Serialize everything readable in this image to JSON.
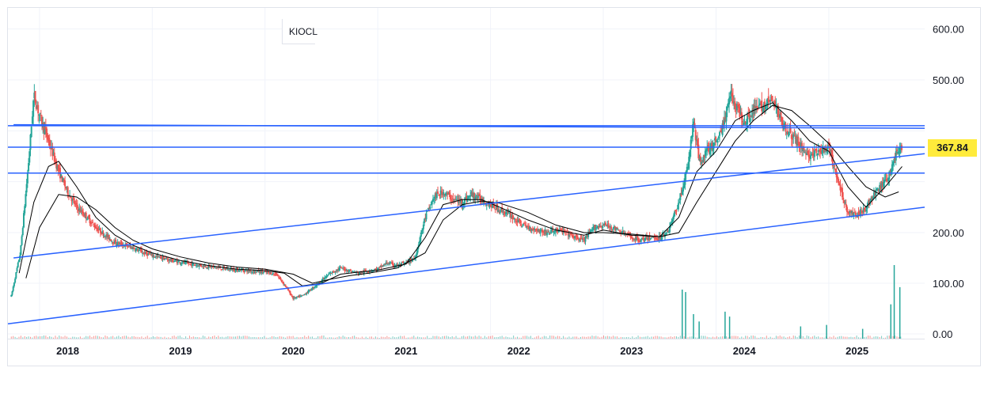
{
  "symbol": "KIOCL",
  "last_price": "367.84",
  "colors": {
    "up": "#26a69a",
    "down": "#ef5350",
    "trendline": "#2962ff",
    "moving_average": "#000000",
    "price_badge": "#ffeb3b",
    "grid": "#f0f3fa",
    "axis_text": "#131722"
  },
  "chart_data": {
    "type": "candlestick",
    "title": "",
    "xlabel": "",
    "ylabel": "",
    "x_ticks": [
      "2018",
      "2019",
      "2020",
      "2021",
      "2022",
      "2023",
      "2024",
      "2025"
    ],
    "y_ticks": [
      "0.00",
      "100.00",
      "200.00",
      "500.00",
      "600.00"
    ],
    "ylim": [
      -10,
      640
    ],
    "xlim": [
      2017.72,
      2025.85
    ],
    "grid": true,
    "approx_close_series": [
      [
        2017.75,
        75
      ],
      [
        2017.83,
        160
      ],
      [
        2017.9,
        330
      ],
      [
        2017.95,
        470
      ],
      [
        2018.0,
        430
      ],
      [
        2018.08,
        380
      ],
      [
        2018.17,
        320
      ],
      [
        2018.25,
        280
      ],
      [
        2018.33,
        250
      ],
      [
        2018.42,
        230
      ],
      [
        2018.5,
        210
      ],
      [
        2018.58,
        195
      ],
      [
        2018.67,
        180
      ],
      [
        2018.75,
        175
      ],
      [
        2018.83,
        170
      ],
      [
        2018.92,
        160
      ],
      [
        2019.0,
        155
      ],
      [
        2019.17,
        145
      ],
      [
        2019.33,
        138
      ],
      [
        2019.5,
        133
      ],
      [
        2019.67,
        128
      ],
      [
        2019.83,
        125
      ],
      [
        2020.0,
        122
      ],
      [
        2020.1,
        118
      ],
      [
        2020.18,
        95
      ],
      [
        2020.25,
        70
      ],
      [
        2020.33,
        75
      ],
      [
        2020.42,
        90
      ],
      [
        2020.5,
        105
      ],
      [
        2020.58,
        120
      ],
      [
        2020.67,
        130
      ],
      [
        2020.75,
        125
      ],
      [
        2020.83,
        120
      ],
      [
        2020.92,
        125
      ],
      [
        2021.0,
        128
      ],
      [
        2021.08,
        140
      ],
      [
        2021.17,
        135
      ],
      [
        2021.25,
        140
      ],
      [
        2021.33,
        150
      ],
      [
        2021.42,
        230
      ],
      [
        2021.5,
        270
      ],
      [
        2021.58,
        280
      ],
      [
        2021.67,
        265
      ],
      [
        2021.75,
        260
      ],
      [
        2021.83,
        275
      ],
      [
        2021.92,
        265
      ],
      [
        2022.0,
        255
      ],
      [
        2022.08,
        245
      ],
      [
        2022.17,
        235
      ],
      [
        2022.25,
        220
      ],
      [
        2022.33,
        210
      ],
      [
        2022.42,
        205
      ],
      [
        2022.5,
        200
      ],
      [
        2022.58,
        205
      ],
      [
        2022.67,
        200
      ],
      [
        2022.75,
        190
      ],
      [
        2022.83,
        185
      ],
      [
        2022.92,
        210
      ],
      [
        2023.0,
        215
      ],
      [
        2023.08,
        210
      ],
      [
        2023.17,
        200
      ],
      [
        2023.25,
        190
      ],
      [
        2023.33,
        185
      ],
      [
        2023.42,
        190
      ],
      [
        2023.5,
        190
      ],
      [
        2023.58,
        205
      ],
      [
        2023.67,
        260
      ],
      [
        2023.75,
        330
      ],
      [
        2023.8,
        420
      ],
      [
        2023.85,
        340
      ],
      [
        2023.92,
        360
      ],
      [
        2024.0,
        380
      ],
      [
        2024.08,
        420
      ],
      [
        2024.12,
        480
      ],
      [
        2024.17,
        450
      ],
      [
        2024.25,
        420
      ],
      [
        2024.33,
        440
      ],
      [
        2024.42,
        450
      ],
      [
        2024.5,
        460
      ],
      [
        2024.58,
        420
      ],
      [
        2024.67,
        390
      ],
      [
        2024.75,
        370
      ],
      [
        2024.83,
        350
      ],
      [
        2024.92,
        360
      ],
      [
        2025.0,
        365
      ],
      [
        2025.08,
        300
      ],
      [
        2025.17,
        240
      ],
      [
        2025.25,
        235
      ],
      [
        2025.33,
        250
      ],
      [
        2025.42,
        280
      ],
      [
        2025.5,
        300
      ],
      [
        2025.55,
        320
      ],
      [
        2025.6,
        360
      ],
      [
        2025.65,
        367.84
      ]
    ],
    "approx_moving_average_fast": [
      [
        2017.82,
        120
      ],
      [
        2017.95,
        260
      ],
      [
        2018.08,
        330
      ],
      [
        2018.17,
        340
      ],
      [
        2018.33,
        290
      ],
      [
        2018.5,
        230
      ],
      [
        2018.67,
        195
      ],
      [
        2018.83,
        175
      ],
      [
        2019.0,
        160
      ],
      [
        2019.25,
        145
      ],
      [
        2019.5,
        135
      ],
      [
        2019.75,
        128
      ],
      [
        2020.0,
        125
      ],
      [
        2020.17,
        120
      ],
      [
        2020.33,
        95
      ],
      [
        2020.5,
        100
      ],
      [
        2020.67,
        118
      ],
      [
        2020.83,
        122
      ],
      [
        2021.0,
        126
      ],
      [
        2021.25,
        138
      ],
      [
        2021.42,
        190
      ],
      [
        2021.58,
        255
      ],
      [
        2021.75,
        265
      ],
      [
        2021.92,
        265
      ],
      [
        2022.08,
        250
      ],
      [
        2022.33,
        225
      ],
      [
        2022.58,
        205
      ],
      [
        2022.83,
        195
      ],
      [
        2023.0,
        205
      ],
      [
        2023.25,
        195
      ],
      [
        2023.5,
        192
      ],
      [
        2023.67,
        230
      ],
      [
        2023.83,
        320
      ],
      [
        2024.0,
        360
      ],
      [
        2024.17,
        420
      ],
      [
        2024.33,
        440
      ],
      [
        2024.5,
        455
      ],
      [
        2024.67,
        420
      ],
      [
        2024.83,
        380
      ],
      [
        2025.0,
        360
      ],
      [
        2025.17,
        290
      ],
      [
        2025.33,
        250
      ],
      [
        2025.5,
        290
      ],
      [
        2025.65,
        330
      ]
    ],
    "approx_moving_average_slow": [
      [
        2017.88,
        110
      ],
      [
        2018.0,
        210
      ],
      [
        2018.17,
        275
      ],
      [
        2018.33,
        270
      ],
      [
        2018.5,
        245
      ],
      [
        2018.67,
        210
      ],
      [
        2018.83,
        185
      ],
      [
        2019.0,
        168
      ],
      [
        2019.25,
        152
      ],
      [
        2019.5,
        140
      ],
      [
        2019.75,
        132
      ],
      [
        2020.0,
        128
      ],
      [
        2020.25,
        118
      ],
      [
        2020.42,
        100
      ],
      [
        2020.58,
        108
      ],
      [
        2020.75,
        115
      ],
      [
        2020.92,
        120
      ],
      [
        2021.17,
        130
      ],
      [
        2021.42,
        160
      ],
      [
        2021.58,
        225
      ],
      [
        2021.75,
        255
      ],
      [
        2021.92,
        262
      ],
      [
        2022.08,
        258
      ],
      [
        2022.33,
        240
      ],
      [
        2022.58,
        215
      ],
      [
        2022.83,
        200
      ],
      [
        2023.0,
        200
      ],
      [
        2023.25,
        197
      ],
      [
        2023.5,
        192
      ],
      [
        2023.67,
        200
      ],
      [
        2023.83,
        260
      ],
      [
        2024.0,
        320
      ],
      [
        2024.17,
        380
      ],
      [
        2024.33,
        420
      ],
      [
        2024.5,
        450
      ],
      [
        2024.67,
        440
      ],
      [
        2024.83,
        410
      ],
      [
        2025.0,
        375
      ],
      [
        2025.17,
        330
      ],
      [
        2025.33,
        290
      ],
      [
        2025.5,
        270
      ],
      [
        2025.62,
        280
      ]
    ],
    "horizontal_lines": [
      410,
      367.84,
      317
    ],
    "trendlines": [
      {
        "from": [
          2017.77,
          150
        ],
        "to": [
          2025.85,
          355
        ]
      },
      {
        "from": [
          2017.72,
          20
        ],
        "to": [
          2025.85,
          250
        ]
      },
      {
        "from": [
          2017.77,
          412
        ],
        "to": [
          2025.85,
          405
        ]
      }
    ],
    "approx_volume_spikes": [
      [
        2023.7,
        100
      ],
      [
        2023.73,
        95
      ],
      [
        2023.8,
        50
      ],
      [
        2023.85,
        35
      ],
      [
        2024.08,
        55
      ],
      [
        2024.12,
        45
      ],
      [
        2024.75,
        25
      ],
      [
        2024.98,
        28
      ],
      [
        2025.3,
        20
      ],
      [
        2025.55,
        70
      ],
      [
        2025.58,
        150
      ],
      [
        2025.63,
        105
      ]
    ]
  }
}
